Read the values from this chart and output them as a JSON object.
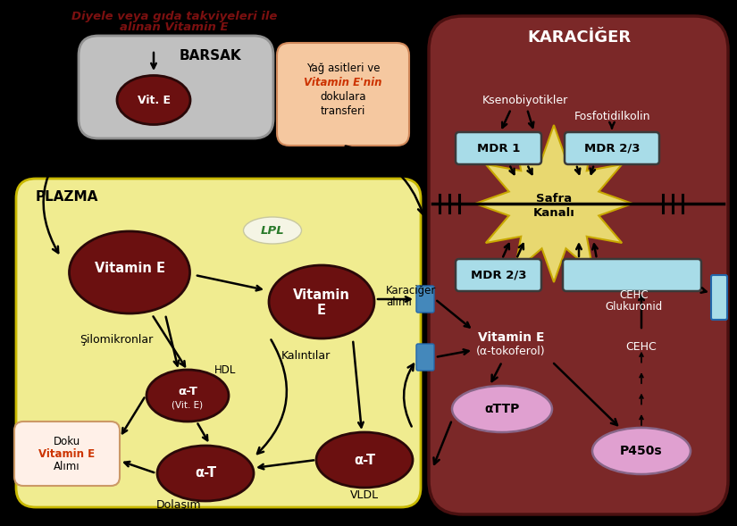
{
  "bg_color": "#000000",
  "title_line1": "Diyele veya gıda takviyeleri ile",
  "title_line2": "alınan Vitamin E",
  "title_color": "#7B1010",
  "karaciger_color": "#7B2828",
  "karaciger_label": "KARACİĞER",
  "plazma_color": "#F0EC90",
  "plazma_label": "PLAZMA",
  "barsak_color": "#C0C0C0",
  "barsak_label": "BARSAK",
  "dark_red": "#6B1010",
  "dark_red2": "#8B1515",
  "light_blue": "#A8DCE8",
  "pink": "#E0A0D0",
  "gold_star": "#E8D870",
  "gold_star_edge": "#C8A800",
  "white": "#FFFFFF",
  "black": "#000000",
  "orange_text": "#CC3300",
  "green_text": "#2A7A2A",
  "yag_bg": "#F5C8A0",
  "yag_edge": "#D0885A"
}
